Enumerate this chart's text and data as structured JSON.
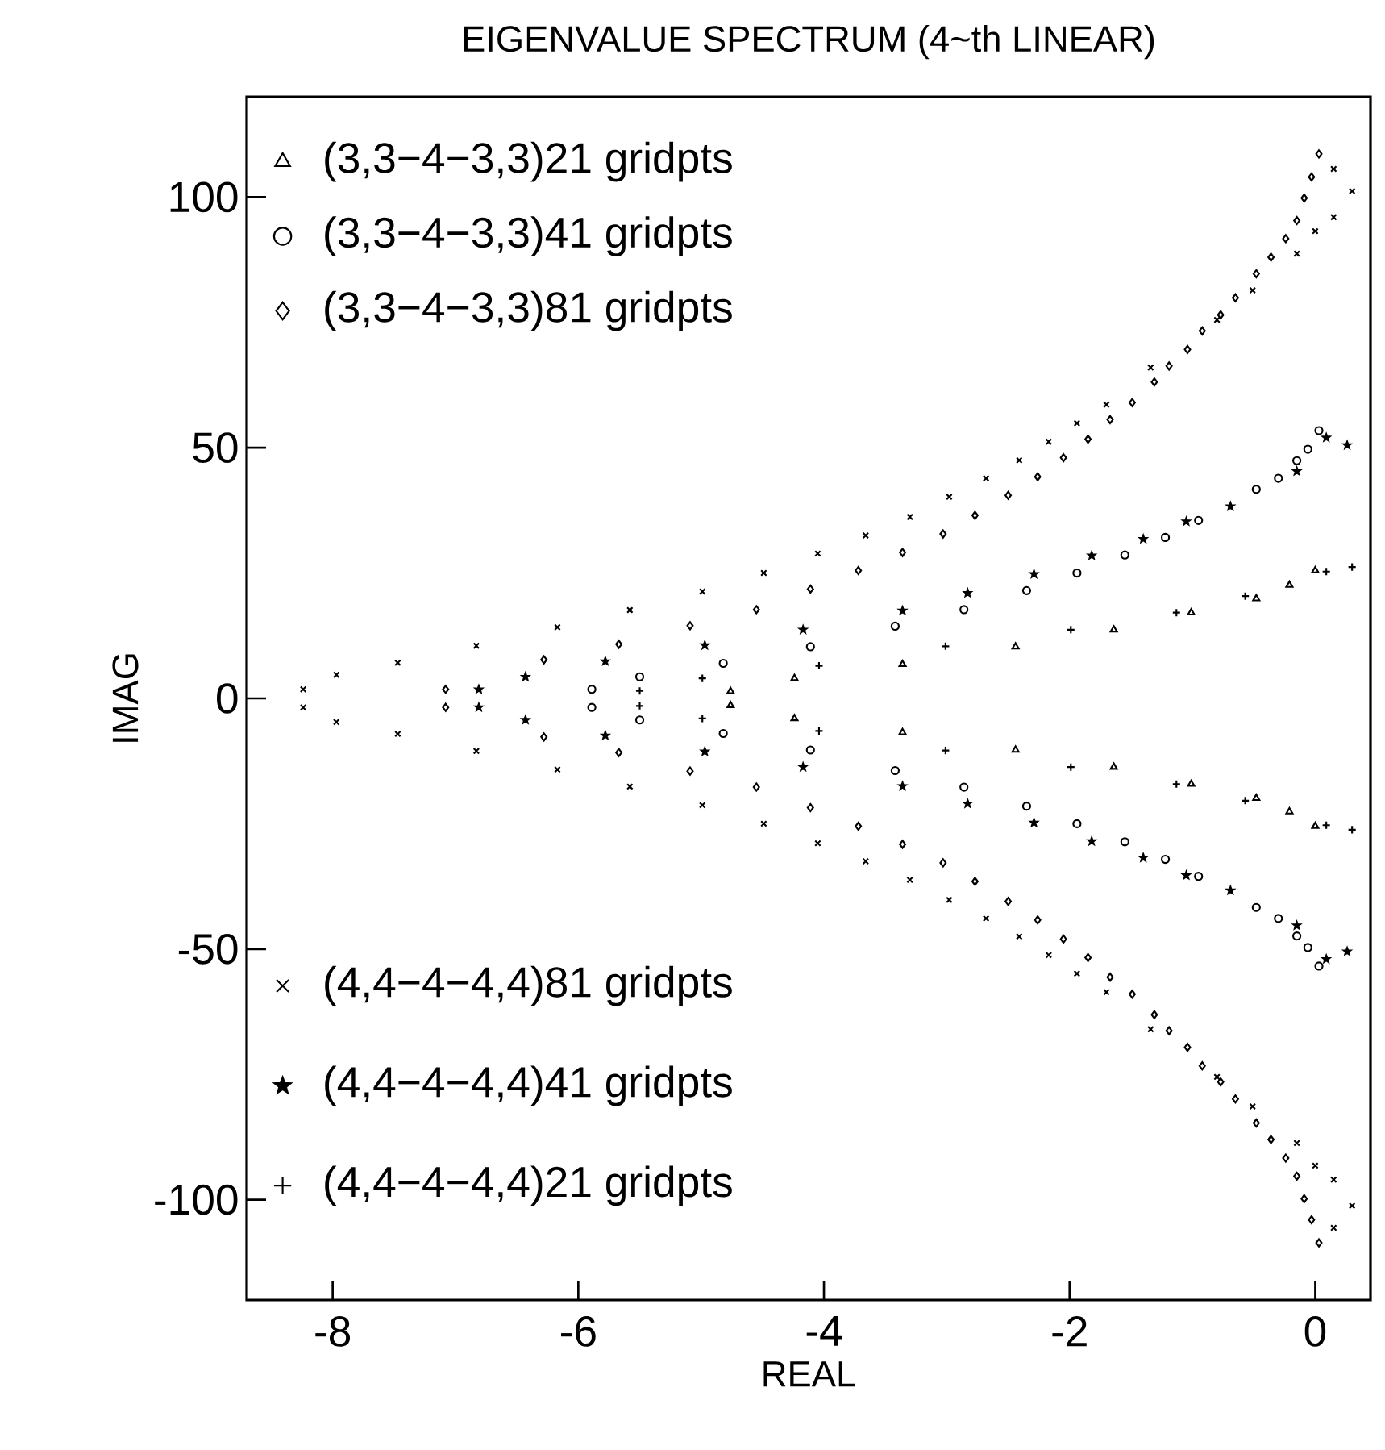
{
  "chart_data": {
    "type": "scatter",
    "title": "EIGENVALUE SPECTRUM (4~th LINEAR)",
    "xlabel": "REAL",
    "ylabel": "IMAG",
    "xlim": [
      -8.7,
      0.45
    ],
    "ylim": [
      -120,
      120
    ],
    "xticks": [
      -8,
      -6,
      -4,
      -2,
      0
    ],
    "yticks": [
      -100,
      -50,
      0,
      50,
      100
    ],
    "legend": "left",
    "series": [
      {
        "name": "(3,3−4−3,3)21 gridpts",
        "color": "#000000",
        "marker": "triangle",
        "x": [
          0,
          -0.21,
          -0.48,
          -1.01,
          -1.64,
          -2.44,
          -3.36,
          -4.24,
          -4.76,
          0,
          -0.21,
          -0.48,
          -1.01,
          -1.64,
          -2.44,
          -3.36,
          -4.24,
          -4.76
        ],
        "values": [
          25.5,
          22.6,
          19.9,
          17.1,
          13.7,
          10.3,
          6.8,
          4.0,
          1.4,
          -25.5,
          -22.6,
          -19.9,
          -17.1,
          -13.7,
          -10.3,
          -6.8,
          -4.0,
          -1.4
        ]
      },
      {
        "name": "(3,3−4−3,3)41 gridpts",
        "color": "#000000",
        "marker": "circle",
        "x": [
          0.03,
          -0.06,
          -0.15,
          -0.3,
          -0.48,
          -0.95,
          -1.22,
          -1.55,
          -1.94,
          -2.35,
          -2.86,
          -3.42,
          -4.11,
          -4.82,
          -5.5,
          -5.89,
          0.03,
          -0.06,
          -0.15,
          -0.3,
          -0.48,
          -0.95,
          -1.22,
          -1.55,
          -1.94,
          -2.35,
          -2.86,
          -3.42,
          -4.11,
          -4.82,
          -5.5,
          -5.89
        ],
        "values": [
          53.4,
          49.7,
          47.4,
          43.9,
          41.7,
          35.5,
          32.1,
          28.6,
          25,
          21.5,
          17.7,
          14.4,
          10.3,
          7,
          4.3,
          1.8,
          -53.4,
          -49.7,
          -47.4,
          -43.9,
          -41.7,
          -35.5,
          -32.1,
          -28.6,
          -25,
          -21.5,
          -17.7,
          -14.4,
          -10.3,
          -7,
          -4.3,
          -1.8
        ]
      },
      {
        "name": "(3,3−4−3,3)81 gridpts",
        "color": "#000000",
        "marker": "diamond",
        "x": [
          0.03,
          -0.03,
          -0.09,
          -0.15,
          -0.24,
          -0.36,
          -0.48,
          -0.65,
          -0.77,
          -0.92,
          -1.04,
          -1.19,
          -1.31,
          -1.49,
          -1.67,
          -1.85,
          -2.05,
          -2.26,
          -2.5,
          -2.77,
          -3.03,
          -3.36,
          -3.72,
          -4.11,
          -4.55,
          -5.09,
          -5.67,
          -6.28,
          -7.08,
          0.03,
          -0.03,
          -0.09,
          -0.15,
          -0.24,
          -0.36,
          -0.48,
          -0.65,
          -0.77,
          -0.92,
          -1.04,
          -1.19,
          -1.31,
          -1.49,
          -1.67,
          -1.85,
          -2.05,
          -2.26,
          -2.5,
          -2.77,
          -3.03,
          -3.36,
          -3.72,
          -4.11,
          -4.55,
          -5.09,
          -5.67,
          -6.28,
          -7.08
        ],
        "values": [
          108.6,
          104,
          99.8,
          95.3,
          91.7,
          88,
          84.7,
          79.9,
          76.5,
          73.3,
          69.6,
          66.3,
          63.1,
          59,
          55.6,
          51.7,
          48,
          44.2,
          40.5,
          36.5,
          32.8,
          29.1,
          25.5,
          21.8,
          17.7,
          14.5,
          10.8,
          7.7,
          1.8,
          -108.6,
          -104,
          -99.8,
          -95.3,
          -91.7,
          -88,
          -84.7,
          -79.9,
          -76.5,
          -73.3,
          -69.6,
          -66.3,
          -63.1,
          -59,
          -55.6,
          -51.7,
          -48,
          -44.2,
          -40.5,
          -36.5,
          -32.8,
          -29.1,
          -25.5,
          -21.8,
          -17.7,
          -14.5,
          -10.8,
          -7.7,
          -1.8
        ]
      },
      {
        "name": "(4,4−4−4,4)81 gridpts",
        "color": "#000000",
        "marker": "cross",
        "x": [
          0.15,
          0.3,
          0.15,
          0,
          -0.15,
          -0.51,
          -0.8,
          -1.34,
          -1.7,
          -1.94,
          -2.17,
          -2.41,
          -2.68,
          -2.98,
          -3.3,
          -3.66,
          -4.05,
          -4.49,
          -4.99,
          -5.58,
          -6.17,
          -6.83,
          -7.47,
          -7.97,
          -8.24,
          0.15,
          0.3,
          0.15,
          0,
          -0.15,
          -0.51,
          -0.8,
          -1.34,
          -1.7,
          -1.94,
          -2.17,
          -2.41,
          -2.68,
          -2.98,
          -3.3,
          -3.66,
          -4.05,
          -4.49,
          -4.99,
          -5.58,
          -6.17,
          -6.83,
          -7.47,
          -7.97,
          -8.24
        ],
        "values": [
          105.6,
          101.2,
          96,
          93.2,
          88.7,
          81.4,
          75.5,
          66,
          58.6,
          54.9,
          51.2,
          47.5,
          43.9,
          40.2,
          36.2,
          32.5,
          28.9,
          25,
          21.3,
          17.6,
          14.2,
          10.5,
          7.1,
          4.7,
          1.8,
          -105.6,
          -101.2,
          -96,
          -93.2,
          -88.7,
          -81.4,
          -75.5,
          -66,
          -58.6,
          -54.9,
          -51.2,
          -47.5,
          -43.9,
          -40.2,
          -36.2,
          -32.5,
          -28.9,
          -25,
          -21.3,
          -17.6,
          -14.2,
          -10.5,
          -7.1,
          -4.7,
          -1.8
        ]
      },
      {
        "name": "(4,4−4−4,4)41 gridpts",
        "color": "#000000",
        "marker": "star",
        "x": [
          0.26,
          0.09,
          -0.15,
          -0.69,
          -1.05,
          -1.4,
          -1.82,
          -2.29,
          -2.83,
          -3.36,
          -4.17,
          -4.97,
          -5.78,
          -6.43,
          -6.81,
          0.26,
          0.09,
          -0.15,
          -0.69,
          -1.05,
          -1.4,
          -1.82,
          -2.29,
          -2.83,
          -3.36,
          -4.17,
          -4.97,
          -5.78,
          -6.43,
          -6.81
        ],
        "values": [
          50.5,
          52,
          45.3,
          38.3,
          35.3,
          31.8,
          28.5,
          24.8,
          21,
          17.5,
          13.7,
          10.6,
          7.4,
          4.3,
          1.8,
          -50.5,
          -52,
          -45.3,
          -38.3,
          -35.3,
          -31.8,
          -28.5,
          -24.8,
          -21,
          -17.5,
          -13.7,
          -10.6,
          -7.4,
          -4.3,
          -1.8
        ]
      },
      {
        "name": "(4,4−4−4,4)21 gridpts",
        "color": "#000000",
        "marker": "plus",
        "x": [
          0.3,
          0.09,
          -0.57,
          -1.13,
          -1.99,
          -3.01,
          -4.04,
          -4.99,
          -5.5,
          0.3,
          0.09,
          -0.57,
          -1.13,
          -1.99,
          -3.01,
          -4.04,
          -4.99,
          -5.5
        ],
        "values": [
          26.2,
          25.3,
          20.4,
          17.1,
          13.7,
          10.4,
          6.5,
          4,
          1.5,
          -26.2,
          -25.3,
          -20.4,
          -17.1,
          -13.7,
          -10.4,
          -6.5,
          -4,
          -1.5
        ]
      }
    ]
  }
}
